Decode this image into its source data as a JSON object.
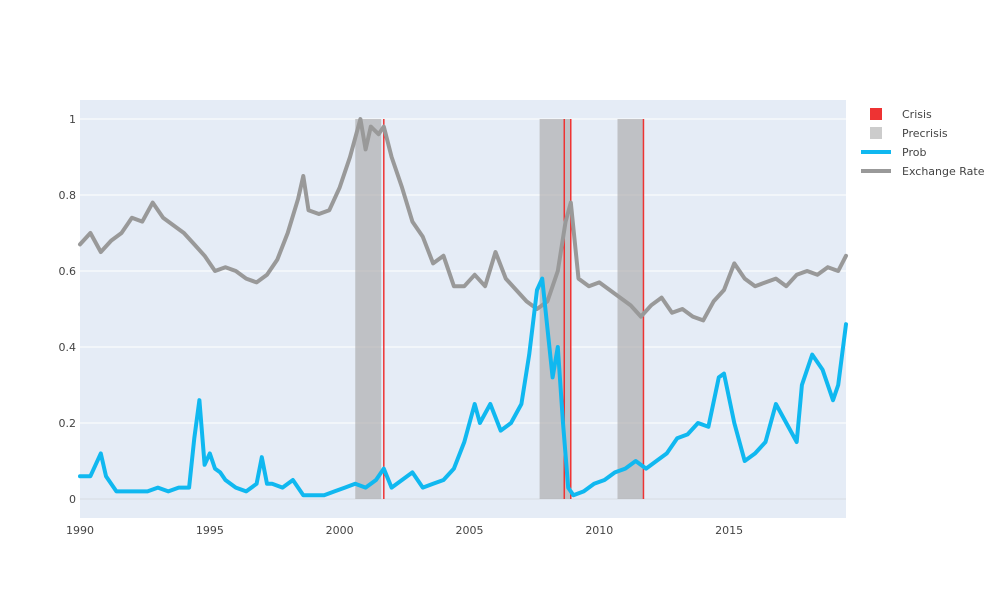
{
  "colors": {
    "plot_bg": "#e5ecf6",
    "grid": "#ffffff",
    "crisis": "#ee3333",
    "precrisis": "#aaaaaa",
    "prob": "#10b8f0",
    "exchange": "#999999"
  },
  "chart_data": {
    "type": "line",
    "title": "",
    "xlabel": "",
    "ylabel": "",
    "xlim": [
      1990.0,
      2019.5
    ],
    "ylim": [
      -0.05,
      1.05
    ],
    "grid": true,
    "legend_position": "top-right",
    "x_ticks": [
      1990,
      1995,
      2000,
      2005,
      2010,
      2015
    ],
    "x_tick_labels": [
      "1990",
      "1995",
      "2000",
      "2005",
      "2010",
      "2015"
    ],
    "y_ticks": [
      0,
      0.2,
      0.4,
      0.6,
      0.8,
      1
    ],
    "y_tick_labels": [
      "0",
      "0.2",
      "0.4",
      "0.6",
      "0.8",
      "1"
    ],
    "legend": [
      {
        "name": "Crisis",
        "kind": "square",
        "color": "#ee3333"
      },
      {
        "name": "Precrisis",
        "kind": "square",
        "color": "#cccccc"
      },
      {
        "name": "Prob",
        "kind": "line",
        "color": "#10b8f0"
      },
      {
        "name": "Exchange Rate",
        "kind": "line",
        "color": "#999999"
      }
    ],
    "precrisis_periods": [
      [
        2000.6,
        2001.6
      ],
      [
        2007.7,
        2008.9
      ],
      [
        2010.7,
        2011.7
      ]
    ],
    "crisis_lines": [
      2001.7,
      2008.65,
      2008.9,
      2011.7
    ],
    "series": [
      {
        "name": "Exchange Rate",
        "color": "#999999",
        "x": [
          1990.0,
          1990.4,
          1990.8,
          1991.2,
          1991.6,
          1992.0,
          1992.4,
          1992.8,
          1993.2,
          1993.6,
          1994.0,
          1994.4,
          1994.8,
          1995.2,
          1995.6,
          1996.0,
          1996.4,
          1996.8,
          1997.2,
          1997.6,
          1998.0,
          1998.4,
          1998.6,
          1998.8,
          1999.2,
          1999.6,
          2000.0,
          2000.4,
          2000.8,
          2001.0,
          2001.2,
          2001.5,
          2001.7,
          2002.0,
          2002.4,
          2002.8,
          2003.2,
          2003.6,
          2004.0,
          2004.4,
          2004.8,
          2005.2,
          2005.6,
          2006.0,
          2006.4,
          2006.8,
          2007.2,
          2007.6,
          2008.0,
          2008.4,
          2008.7,
          2008.9,
          2009.2,
          2009.6,
          2010.0,
          2010.4,
          2010.8,
          2011.2,
          2011.6,
          2012.0,
          2012.4,
          2012.8,
          2013.2,
          2013.6,
          2014.0,
          2014.4,
          2014.8,
          2015.2,
          2015.6,
          2016.0,
          2016.4,
          2016.8,
          2017.2,
          2017.6,
          2018.0,
          2018.4,
          2018.8,
          2019.2,
          2019.5
        ],
        "values": [
          0.67,
          0.7,
          0.65,
          0.68,
          0.7,
          0.74,
          0.73,
          0.78,
          0.74,
          0.72,
          0.7,
          0.67,
          0.64,
          0.6,
          0.61,
          0.6,
          0.58,
          0.57,
          0.59,
          0.63,
          0.7,
          0.79,
          0.85,
          0.76,
          0.75,
          0.76,
          0.82,
          0.9,
          1.0,
          0.92,
          0.98,
          0.96,
          0.98,
          0.9,
          0.82,
          0.73,
          0.69,
          0.62,
          0.64,
          0.56,
          0.56,
          0.59,
          0.56,
          0.65,
          0.58,
          0.55,
          0.52,
          0.5,
          0.52,
          0.6,
          0.73,
          0.78,
          0.58,
          0.56,
          0.57,
          0.55,
          0.53,
          0.51,
          0.48,
          0.51,
          0.53,
          0.49,
          0.5,
          0.48,
          0.47,
          0.52,
          0.55,
          0.62,
          0.58,
          0.56,
          0.57,
          0.58,
          0.56,
          0.59,
          0.6,
          0.59,
          0.61,
          0.6,
          0.64
        ]
      },
      {
        "name": "Prob",
        "color": "#10b8f0",
        "x": [
          1990.0,
          1990.4,
          1990.6,
          1990.8,
          1991.0,
          1991.4,
          1991.8,
          1992.2,
          1992.6,
          1993.0,
          1993.4,
          1993.8,
          1994.2,
          1994.4,
          1994.6,
          1994.8,
          1995.0,
          1995.2,
          1995.4,
          1995.6,
          1996.0,
          1996.4,
          1996.8,
          1997.0,
          1997.2,
          1997.4,
          1997.8,
          1998.2,
          1998.6,
          1999.0,
          1999.4,
          1999.8,
          2000.2,
          2000.6,
          2001.0,
          2001.4,
          2001.7,
          2002.0,
          2002.4,
          2002.8,
          2003.2,
          2003.6,
          2004.0,
          2004.4,
          2004.8,
          2005.2,
          2005.4,
          2005.8,
          2006.2,
          2006.6,
          2007.0,
          2007.3,
          2007.6,
          2007.8,
          2008.0,
          2008.2,
          2008.4,
          2008.6,
          2008.8,
          2009.0,
          2009.4,
          2009.8,
          2010.2,
          2010.6,
          2011.0,
          2011.4,
          2011.8,
          2012.2,
          2012.6,
          2013.0,
          2013.4,
          2013.8,
          2014.2,
          2014.6,
          2014.8,
          2015.2,
          2015.6,
          2016.0,
          2016.4,
          2016.8,
          2017.2,
          2017.6,
          2017.8,
          2018.2,
          2018.6,
          2019.0,
          2019.2,
          2019.5
        ],
        "values": [
          0.06,
          0.06,
          0.09,
          0.12,
          0.06,
          0.02,
          0.02,
          0.02,
          0.02,
          0.03,
          0.02,
          0.03,
          0.03,
          0.16,
          0.26,
          0.09,
          0.12,
          0.08,
          0.07,
          0.05,
          0.03,
          0.02,
          0.04,
          0.11,
          0.04,
          0.04,
          0.03,
          0.05,
          0.01,
          0.01,
          0.01,
          0.02,
          0.03,
          0.04,
          0.03,
          0.05,
          0.08,
          0.03,
          0.05,
          0.07,
          0.03,
          0.04,
          0.05,
          0.08,
          0.15,
          0.25,
          0.2,
          0.25,
          0.18,
          0.2,
          0.25,
          0.38,
          0.55,
          0.58,
          0.45,
          0.32,
          0.4,
          0.2,
          0.03,
          0.01,
          0.02,
          0.04,
          0.05,
          0.07,
          0.08,
          0.1,
          0.08,
          0.1,
          0.12,
          0.16,
          0.17,
          0.2,
          0.19,
          0.32,
          0.33,
          0.2,
          0.1,
          0.12,
          0.15,
          0.25,
          0.2,
          0.15,
          0.3,
          0.38,
          0.34,
          0.26,
          0.3,
          0.46
        ]
      }
    ]
  }
}
